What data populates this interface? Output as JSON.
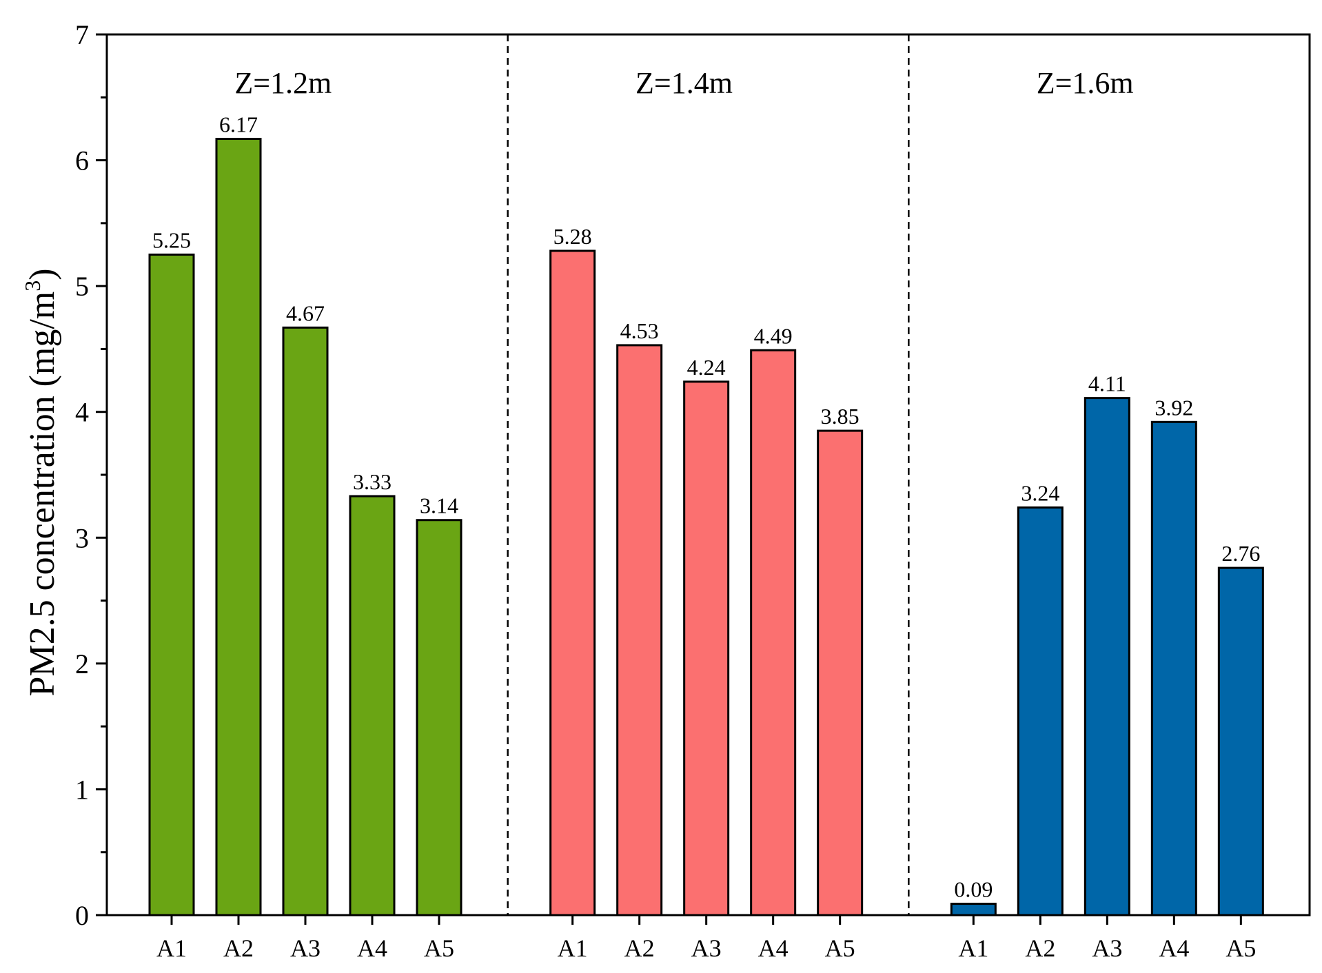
{
  "chart_data": {
    "type": "bar",
    "ylabel": "PM2.5 concentration (mg/m",
    "ylabel_sup": "3",
    "ylabel_close": ")",
    "ylim": [
      0,
      7
    ],
    "yticks": [
      0,
      1,
      2,
      3,
      4,
      5,
      6,
      7
    ],
    "grid": false,
    "legend": "none",
    "panels": [
      {
        "title": "Z=1.2m",
        "color": "#6aa514",
        "categories": [
          "A1",
          "A2",
          "A3",
          "A4",
          "A5"
        ],
        "values": [
          5.25,
          6.17,
          4.67,
          3.33,
          3.14
        ],
        "value_labels": [
          "5.25",
          "6.17",
          "4.67",
          "3.33",
          "3.14"
        ]
      },
      {
        "title": "Z=1.4m",
        "color": "#fb7070",
        "categories": [
          "A1",
          "A2",
          "A3",
          "A4",
          "A5"
        ],
        "values": [
          5.28,
          4.53,
          4.24,
          4.49,
          3.85
        ],
        "value_labels": [
          "5.28",
          "4.53",
          "4.24",
          "4.49",
          "3.85"
        ]
      },
      {
        "title": "Z=1.6m",
        "color": "#0066a8",
        "categories": [
          "A1",
          "A2",
          "A3",
          "A4",
          "A5"
        ],
        "values": [
          0.09,
          3.24,
          4.11,
          3.92,
          2.76
        ],
        "value_labels": [
          "0.09",
          "3.24",
          "4.11",
          "3.92",
          "2.76"
        ]
      }
    ]
  }
}
